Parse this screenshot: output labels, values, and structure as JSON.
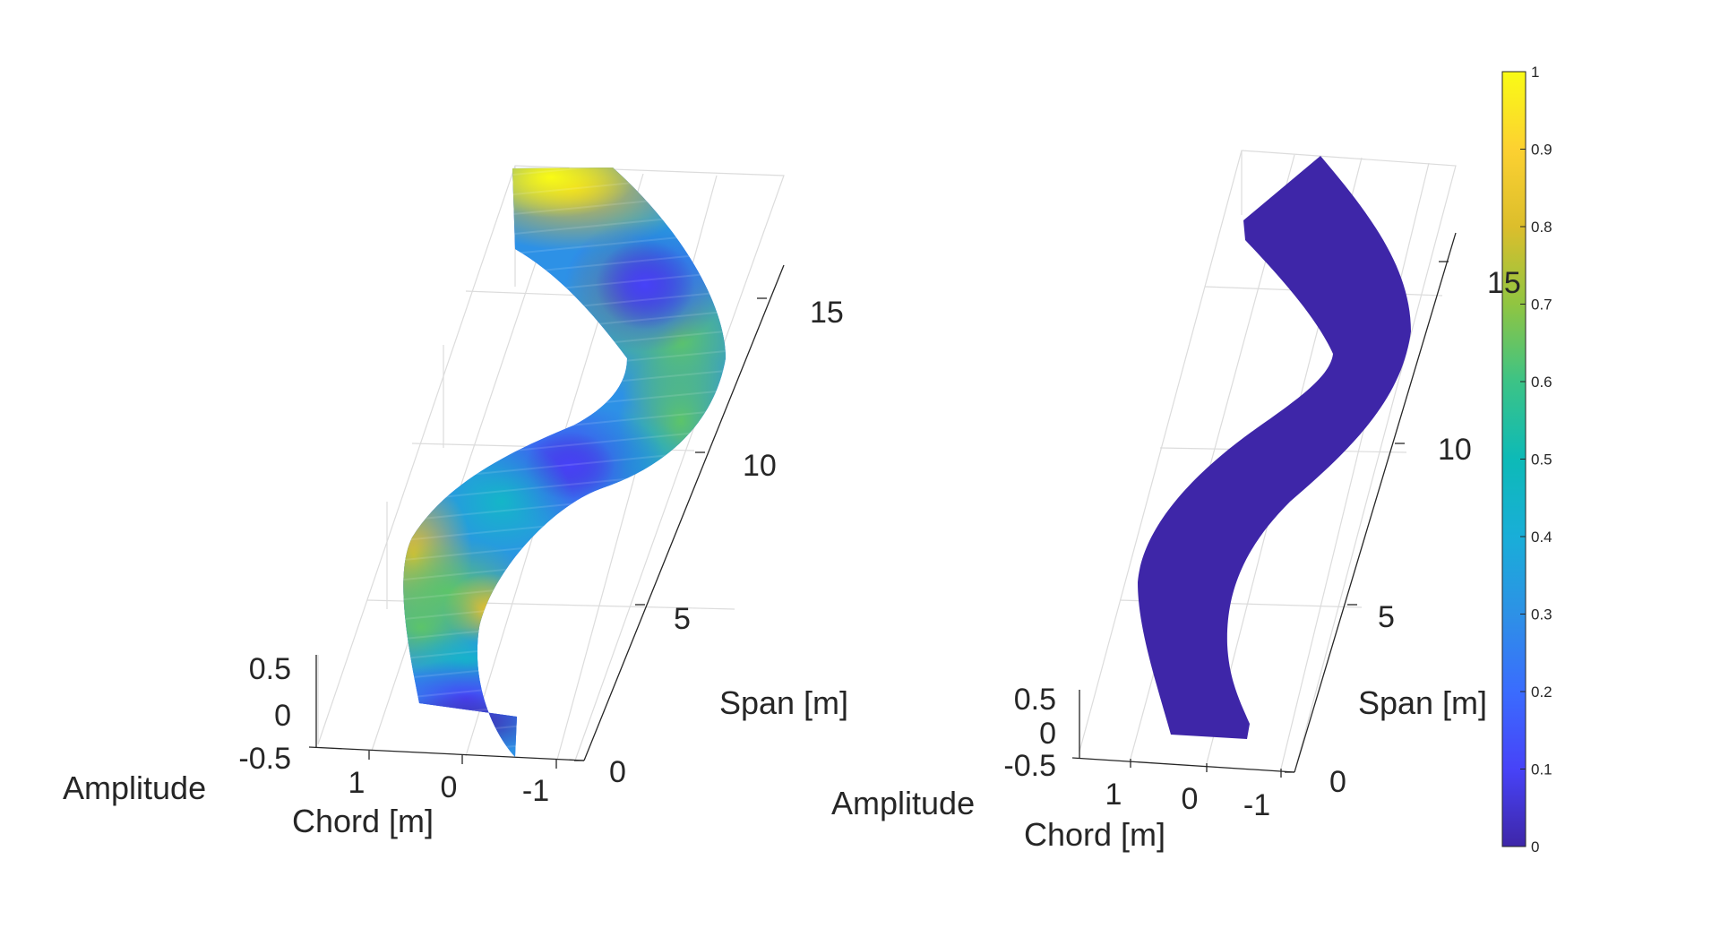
{
  "chart_data": [
    {
      "type": "surface3d",
      "title": "",
      "xlabel": "Chord [m]",
      "ylabel": "Span [m]",
      "zlabel": "Amplitude",
      "x_ticks": [
        "1",
        "0",
        "-1"
      ],
      "y_ticks": [
        "0",
        "5",
        "10",
        "15"
      ],
      "z_ticks": [
        "0.5",
        "0",
        "-0.5"
      ],
      "xlim": [
        -1.5,
        1.5
      ],
      "ylim": [
        0,
        17
      ],
      "zlim": [
        -0.5,
        0.8
      ],
      "grid": true,
      "color_value_range": [
        0.0,
        0.95
      ],
      "color_extrema": [
        {
          "span": 0,
          "value": 0.05
        },
        {
          "span": 4,
          "value": 0.72
        },
        {
          "span": 10,
          "value": 0.0
        },
        {
          "span": 16,
          "value": 0.02
        },
        {
          "span": 17,
          "value": 0.95
        }
      ]
    },
    {
      "type": "surface3d",
      "title": "",
      "xlabel": "Chord [m]",
      "ylabel": "Span [m]",
      "zlabel": "Amplitude",
      "x_ticks": [
        "1",
        "0",
        "-1"
      ],
      "y_ticks": [
        "0",
        "5",
        "10",
        "15"
      ],
      "z_ticks": [
        "0.5",
        "0",
        "-0.5"
      ],
      "xlim": [
        -1.5,
        1.5
      ],
      "ylim": [
        0,
        17
      ],
      "zlim": [
        -0.5,
        0.8
      ],
      "grid": true,
      "color_value_range": [
        0.0,
        0.02
      ]
    }
  ],
  "colorbar": {
    "colormap": "parula",
    "range": [
      0,
      1
    ],
    "ticks": [
      "1",
      "0.9",
      "0.8",
      "0.7",
      "0.6",
      "0.5",
      "0.4",
      "0.3",
      "0.2",
      "0.1",
      "0"
    ]
  },
  "colors": {
    "low": "#3e26a8",
    "high": "#f9fb15",
    "grid": "#dcdcdc",
    "axis": "#262626"
  }
}
